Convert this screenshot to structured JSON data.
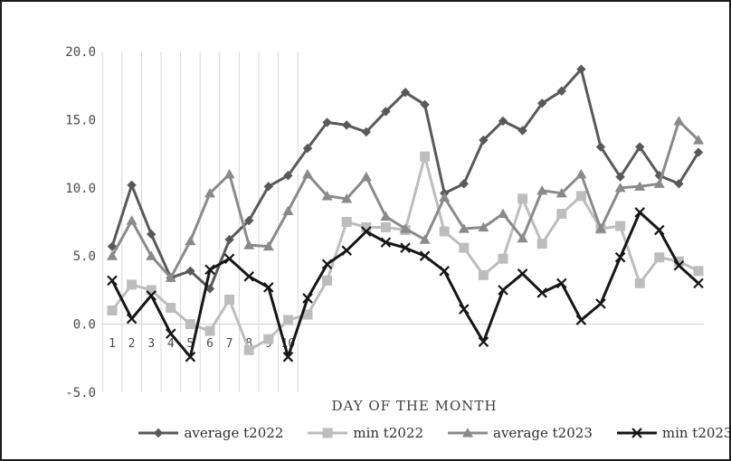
{
  "figure": {
    "y_tick_labels": [
      "20.0",
      "15.0",
      "10.0",
      "5.0",
      "0.0",
      "-5.0"
    ],
    "x_tick_labels": [
      "1",
      "2",
      "3",
      "4",
      "5",
      "6",
      "7",
      "8",
      "9",
      "10"
    ],
    "background_color": "#ffffff",
    "border_color": "#1c1c1c",
    "gridline_color": "#d9d9d9"
  },
  "chart_data": {
    "type": "line",
    "title": "",
    "xlabel": "DAY OF THE MONTH",
    "ylabel": "",
    "x": [
      1,
      2,
      3,
      4,
      5,
      6,
      7,
      8,
      9,
      10,
      11,
      12,
      13,
      14,
      15,
      16,
      17,
      18,
      19,
      20,
      21,
      22,
      23,
      24,
      25,
      26,
      27,
      28,
      29,
      30,
      31
    ],
    "ylim": [
      -5,
      20
    ],
    "y_ticks": [
      20,
      15,
      10,
      5,
      0,
      -5
    ],
    "grid": "vertical lines over days 1-10 only, plus horizontal zero line",
    "legend_position": "bottom",
    "series": [
      {
        "name": "average t2022",
        "marker": "diamond",
        "color": "#595959",
        "values": [
          5.7,
          10.2,
          6.6,
          3.4,
          3.9,
          2.6,
          6.2,
          7.6,
          10.1,
          10.9,
          12.9,
          14.8,
          14.6,
          14.1,
          15.6,
          17.0,
          16.1,
          9.6,
          10.3,
          13.5,
          14.9,
          14.2,
          16.2,
          17.1,
          18.7,
          13.0,
          10.8,
          13.0,
          10.9,
          10.3,
          12.6
        ]
      },
      {
        "name": "min t2022",
        "marker": "square",
        "color": "#bdbdbd",
        "values": [
          1.0,
          2.9,
          2.5,
          1.2,
          0.0,
          -0.5,
          1.8,
          -1.9,
          -1.1,
          0.3,
          0.7,
          3.2,
          7.5,
          7.1,
          7.1,
          6.9,
          12.3,
          6.8,
          5.6,
          3.6,
          4.8,
          9.2,
          5.9,
          8.1,
          9.4,
          7.0,
          7.2,
          3.0,
          4.9,
          4.6,
          3.9
        ]
      },
      {
        "name": "average t2023",
        "marker": "triangle",
        "color": "#8a8a8a",
        "values": [
          5.0,
          7.6,
          5.0,
          3.4,
          6.1,
          9.6,
          11.0,
          5.8,
          5.7,
          8.3,
          11.0,
          9.4,
          9.2,
          10.8,
          7.9,
          7.0,
          6.2,
          9.3,
          7.0,
          7.1,
          8.1,
          6.3,
          9.8,
          9.6,
          11.0,
          7.0,
          10.0,
          10.1,
          10.3,
          14.9,
          13.5
        ]
      },
      {
        "name": "min t2023",
        "marker": "x",
        "color": "#161616",
        "values": [
          3.2,
          0.4,
          2.1,
          -0.7,
          -2.4,
          4.0,
          4.8,
          3.5,
          2.7,
          -2.4,
          1.9,
          4.4,
          5.4,
          6.8,
          6.0,
          5.6,
          5.0,
          3.9,
          1.1,
          -1.3,
          2.5,
          3.7,
          2.3,
          3.0,
          0.3,
          1.5,
          4.9,
          8.2,
          6.9,
          4.3,
          3.0
        ]
      }
    ]
  }
}
